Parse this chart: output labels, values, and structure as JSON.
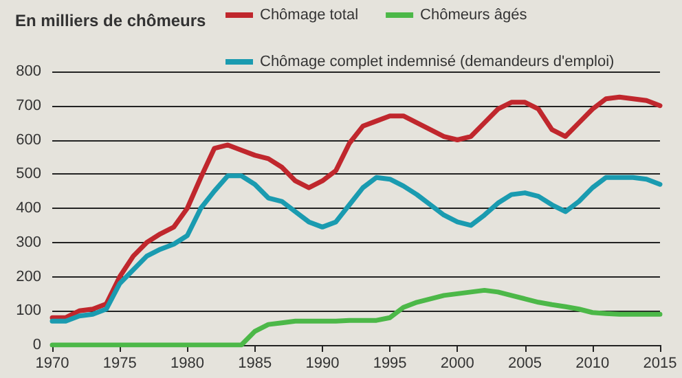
{
  "chart_data": {
    "type": "line",
    "title": "En milliers de chômeurs",
    "x": [
      1970,
      1971,
      1972,
      1973,
      1974,
      1975,
      1976,
      1977,
      1978,
      1979,
      1980,
      1981,
      1982,
      1983,
      1984,
      1985,
      1986,
      1987,
      1988,
      1989,
      1990,
      1991,
      1992,
      1993,
      1994,
      1995,
      1996,
      1997,
      1998,
      1999,
      2000,
      2001,
      2002,
      2003,
      2004,
      2005,
      2006,
      2007,
      2008,
      2009,
      2010,
      2011,
      2012,
      2013,
      2014,
      2015
    ],
    "series": [
      {
        "name": "Chômage total",
        "color": "#c0272d",
        "values": [
          80,
          80,
          100,
          105,
          120,
          200,
          260,
          300,
          325,
          345,
          400,
          490,
          575,
          585,
          570,
          555,
          545,
          520,
          480,
          460,
          480,
          510,
          590,
          640,
          655,
          670,
          670,
          650,
          630,
          610,
          600,
          610,
          650,
          690,
          710,
          710,
          690,
          630,
          610,
          650,
          690,
          720,
          725,
          720,
          715,
          700
        ]
      },
      {
        "name": "Chômeurs âgés",
        "color": "#4cb848",
        "values": [
          0,
          0,
          0,
          0,
          0,
          0,
          0,
          0,
          0,
          0,
          0,
          0,
          0,
          0,
          0,
          40,
          60,
          65,
          70,
          70,
          70,
          70,
          72,
          72,
          72,
          80,
          110,
          125,
          135,
          145,
          150,
          155,
          160,
          155,
          145,
          135,
          125,
          118,
          112,
          105,
          95,
          92,
          90,
          90,
          90,
          90
        ]
      },
      {
        "name": "Chômage complet indemnisé (demandeurs d'emploi)",
        "color": "#1a9bb0",
        "values": [
          70,
          70,
          85,
          90,
          105,
          180,
          220,
          260,
          280,
          295,
          320,
          400,
          450,
          495,
          495,
          470,
          430,
          420,
          390,
          360,
          345,
          360,
          410,
          460,
          490,
          485,
          465,
          440,
          410,
          380,
          360,
          350,
          380,
          415,
          440,
          445,
          435,
          410,
          390,
          420,
          460,
          490,
          490,
          490,
          485,
          470
        ]
      }
    ],
    "xlim": [
      1970,
      2015
    ],
    "xticks": [
      1970,
      1975,
      1980,
      1985,
      1990,
      1995,
      2000,
      2005,
      2010,
      2015
    ],
    "ylim": [
      0,
      800
    ],
    "yticks": [
      0,
      100,
      200,
      300,
      400,
      500,
      600,
      700,
      800
    ],
    "grid": "y",
    "legend": "top",
    "marker": "none",
    "line_style": "solid"
  }
}
